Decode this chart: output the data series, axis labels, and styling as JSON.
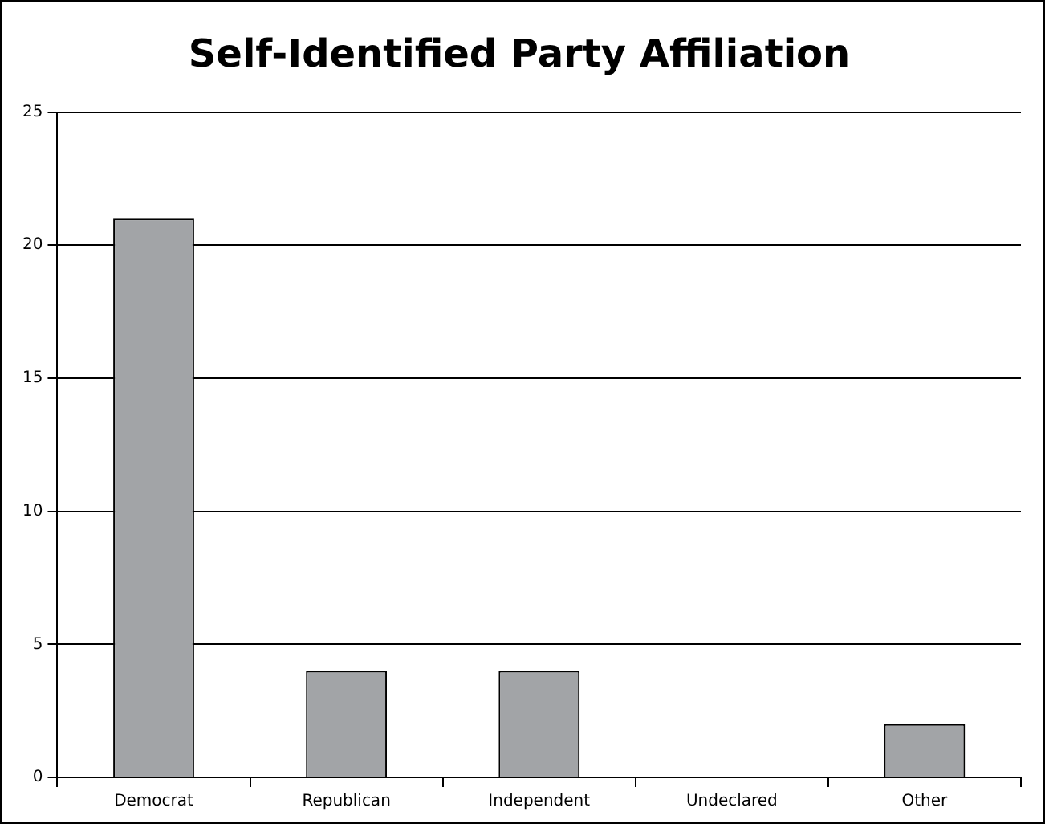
{
  "chart_data": {
    "type": "bar",
    "title": "Self-Identified Party Affiliation",
    "categories": [
      "Democrat",
      "Republican",
      "Independent",
      "Undeclared",
      "Other"
    ],
    "values": [
      21,
      4,
      4,
      0,
      2
    ],
    "color": "#a2a4a7",
    "ylim": [
      0,
      25
    ],
    "yticks": [
      0,
      5,
      10,
      15,
      20,
      25
    ],
    "grid": "y"
  }
}
